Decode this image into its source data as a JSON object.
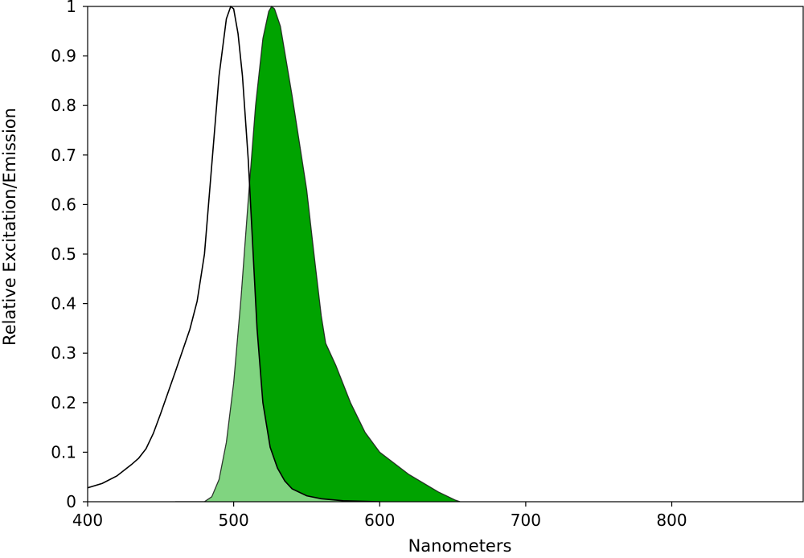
{
  "chart_data": {
    "type": "area",
    "title": "",
    "xlabel": "Nanometers",
    "ylabel": "Relative Excitation/Emission",
    "xlim": [
      400,
      890
    ],
    "ylim": [
      0,
      1
    ],
    "x_ticks": [
      400,
      500,
      600,
      700,
      800
    ],
    "y_ticks": [
      0,
      0.1,
      0.2,
      0.3,
      0.4,
      0.5,
      0.6,
      0.7,
      0.8,
      0.9,
      1
    ],
    "y_tick_labels": [
      "0",
      "0.1",
      "0.2",
      "0.3",
      "0.4",
      "0.5",
      "0.6",
      "0.7",
      "0.8",
      "0.9",
      "1"
    ],
    "grid": false,
    "legend": "none",
    "series": [
      {
        "role": "excitation",
        "style": "line",
        "color": "#000000",
        "points": [
          [
            400,
            0.028
          ],
          [
            410,
            0.037
          ],
          [
            420,
            0.052
          ],
          [
            430,
            0.075
          ],
          [
            435,
            0.088
          ],
          [
            440,
            0.107
          ],
          [
            445,
            0.138
          ],
          [
            450,
            0.178
          ],
          [
            460,
            0.262
          ],
          [
            470,
            0.348
          ],
          [
            475,
            0.405
          ],
          [
            480,
            0.5
          ],
          [
            485,
            0.68
          ],
          [
            490,
            0.86
          ],
          [
            495,
            0.975
          ],
          [
            498,
            1.0
          ],
          [
            500,
            0.995
          ],
          [
            503,
            0.945
          ],
          [
            506,
            0.86
          ],
          [
            510,
            0.69
          ],
          [
            513,
            0.52
          ],
          [
            516,
            0.35
          ],
          [
            520,
            0.2
          ],
          [
            525,
            0.11
          ],
          [
            530,
            0.068
          ],
          [
            535,
            0.042
          ],
          [
            540,
            0.026
          ],
          [
            550,
            0.012
          ],
          [
            560,
            0.006
          ],
          [
            575,
            0.002
          ],
          [
            600,
            0.0
          ]
        ]
      },
      {
        "role": "emission",
        "style": "area",
        "color": "#00a300",
        "overlap_color": "#80d480",
        "points": [
          [
            460,
            0.0
          ],
          [
            480,
            0.0
          ],
          [
            485,
            0.01
          ],
          [
            490,
            0.045
          ],
          [
            495,
            0.12
          ],
          [
            500,
            0.24
          ],
          [
            505,
            0.41
          ],
          [
            510,
            0.61
          ],
          [
            515,
            0.8
          ],
          [
            520,
            0.935
          ],
          [
            524,
            0.99
          ],
          [
            526,
            1.0
          ],
          [
            528,
            0.995
          ],
          [
            532,
            0.96
          ],
          [
            540,
            0.82
          ],
          [
            550,
            0.63
          ],
          [
            555,
            0.5
          ],
          [
            560,
            0.375
          ],
          [
            563,
            0.32
          ],
          [
            570,
            0.275
          ],
          [
            580,
            0.2
          ],
          [
            590,
            0.14
          ],
          [
            600,
            0.1
          ],
          [
            620,
            0.055
          ],
          [
            640,
            0.02
          ],
          [
            652,
            0.003
          ],
          [
            655,
            0.0
          ]
        ]
      }
    ]
  }
}
